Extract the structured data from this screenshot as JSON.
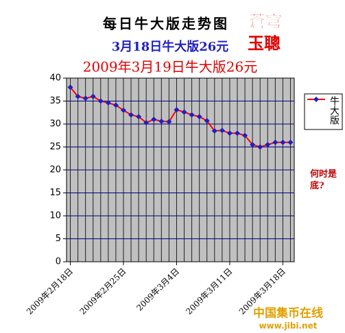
{
  "chart_data": {
    "type": "line",
    "title": "每日牛大版走势图",
    "subtitle": "3月18日牛大版26元",
    "subtitle2": "2009年3月19日牛大版26元",
    "annotation": "何时是底?",
    "watermark": [
      "蒼穹",
      "玉聰"
    ],
    "logo": [
      "中国集币在线",
      "www.jibi.net"
    ],
    "categories": [
      "2009年2月18日",
      null,
      null,
      null,
      null,
      null,
      null,
      "2009年2月25日",
      null,
      null,
      null,
      null,
      null,
      null,
      "2009年3月4日",
      null,
      null,
      null,
      null,
      null,
      null,
      "2009年3月11日",
      null,
      null,
      null,
      null,
      null,
      null,
      "2009年3月18日",
      null
    ],
    "series": [
      {
        "name": "牛大版",
        "color": "#ff0000",
        "marker_color": "#1f1fbf",
        "values": [
          38,
          36,
          35.6,
          36,
          35,
          34.6,
          34.1,
          33,
          32,
          31.6,
          30.3,
          31,
          30.6,
          30.5,
          33.1,
          32.6,
          32,
          31.6,
          30.7,
          28.5,
          28.6,
          28,
          28,
          27.5,
          25.5,
          25,
          25.5,
          26,
          26,
          26
        ]
      }
    ],
    "ylim": [
      0,
      40
    ],
    "yticks": [
      0,
      5,
      10,
      15,
      20,
      25,
      30,
      35,
      40
    ],
    "grid": true,
    "plot_background": "#c0c0c0",
    "grid_color": "#000080"
  }
}
